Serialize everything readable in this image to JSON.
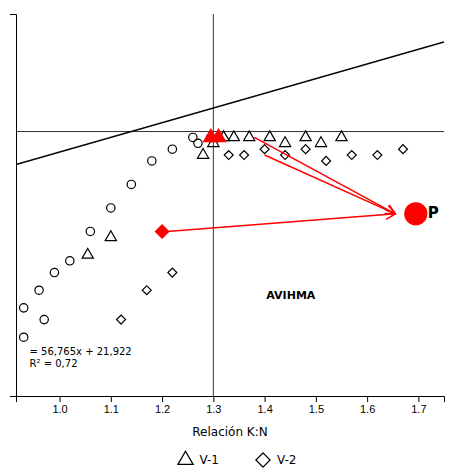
{
  "chart_data": {
    "type": "scatter",
    "xlabel": "Relación K:N",
    "xlim": [
      0.915,
      1.75
    ],
    "ylim": [
      55,
      120
    ],
    "xticks": [
      {
        "value": 1.0,
        "label": "1.0"
      },
      1.1,
      1.2,
      1.3,
      1.4,
      1.5,
      1.6,
      1.7
    ],
    "tick_labels": "x",
    "grid": false,
    "legend": "bottom",
    "hlines": [
      100
    ],
    "vlines": [
      1.3
    ],
    "series": [
      {
        "type": "line",
        "color": "black",
        "line_style": "solid",
        "x": [
          0.915,
          1.75
        ],
        "values": [
          94.375,
          115.25
        ]
      },
      {
        "marker": "circle-open",
        "color": "black",
        "x": [
          0.93,
          0.96,
          0.99,
          1.02,
          1.06,
          1.1,
          1.14,
          1.18,
          1.22,
          1.26,
          1.27,
          1.295
        ],
        "values": [
          70,
          73,
          76,
          78,
          83,
          87,
          91,
          95,
          97,
          99,
          98,
          99
        ]
      },
      {
        "marker": "circle-open",
        "color": "black",
        "x": [
          0.93,
          0.97
        ],
        "values": [
          65,
          68
        ]
      },
      {
        "name": "V-1",
        "marker": "triangle-open",
        "color": "black",
        "x": [
          1.055,
          1.1,
          1.28,
          1.3,
          1.32,
          1.34,
          1.37,
          1.41,
          1.44,
          1.48,
          1.51,
          1.55
        ],
        "values": [
          79,
          82,
          96,
          98,
          99,
          99,
          99,
          99,
          98,
          99,
          98,
          99
        ]
      },
      {
        "name": "V-2",
        "marker": "diamond-open",
        "color": "black",
        "x": [
          1.12,
          1.17,
          1.22,
          1.33,
          1.36,
          1.4,
          1.44,
          1.48,
          1.52,
          1.57,
          1.62,
          1.67
        ],
        "values": [
          68,
          73,
          76,
          96,
          96,
          97,
          96,
          97,
          95,
          96,
          96,
          97
        ]
      },
      {
        "marker": "triangle",
        "color": "red",
        "x": [
          1.295,
          1.31
        ],
        "values": [
          99,
          99
        ]
      },
      {
        "marker": "diamond",
        "color": "red",
        "x": [
          1.2
        ],
        "values": [
          83
        ]
      },
      {
        "marker": "circle",
        "color": "red",
        "x": [
          1.695
        ],
        "values": [
          86
        ]
      }
    ],
    "arrows": {
      "color": "red",
      "from": [
        [
          1.38,
          99
        ],
        [
          1.4,
          96
        ],
        [
          1.21,
          83
        ]
      ],
      "to": [
        1.655,
        86
      ]
    },
    "annotations": [
      {
        "text": "P",
        "x": 1.695,
        "y": 86
      },
      {
        "text": "AVIHMA",
        "x": 1.38,
        "y": 72
      },
      {
        "text": "= 56,765x + 21,922\nR² = 0,72",
        "x": 0.918,
        "y": 60
      }
    ]
  }
}
